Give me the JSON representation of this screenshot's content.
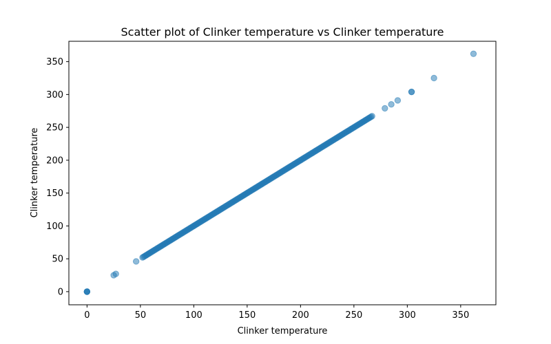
{
  "chart_data": {
    "type": "scatter",
    "title": "Scatter plot of Clinker temperature vs Clinker temperature",
    "xlabel": "Clinker temperature",
    "ylabel": "Clinker temperature",
    "xlim": [
      -17,
      383
    ],
    "ylim": [
      -20,
      381
    ],
    "xticks": [
      0,
      50,
      100,
      150,
      200,
      250,
      300,
      350
    ],
    "yticks": [
      0,
      50,
      100,
      150,
      200,
      250,
      300,
      350
    ],
    "grid": false,
    "legend": "none",
    "color": "#1f77b4",
    "opacity": 0.5,
    "points": [
      [
        0,
        0
      ],
      [
        0,
        0
      ],
      [
        0,
        0
      ],
      [
        0,
        0
      ],
      [
        25,
        25
      ],
      [
        27,
        27
      ],
      [
        46,
        46
      ],
      [
        52,
        52
      ],
      [
        53,
        53
      ],
      [
        54,
        54
      ],
      [
        55,
        55
      ],
      [
        56,
        56
      ],
      [
        57,
        57
      ],
      [
        58,
        58
      ],
      [
        59,
        59
      ],
      [
        60,
        60
      ],
      [
        61,
        61
      ],
      [
        62,
        62
      ],
      [
        63,
        63
      ],
      [
        64,
        64
      ],
      [
        65,
        65
      ],
      [
        66,
        66
      ],
      [
        67,
        67
      ],
      [
        68,
        68
      ],
      [
        69,
        69
      ],
      [
        70,
        70
      ],
      [
        71,
        71
      ],
      [
        72,
        72
      ],
      [
        73,
        73
      ],
      [
        74,
        74
      ],
      [
        75,
        75
      ],
      [
        76,
        76
      ],
      [
        77,
        77
      ],
      [
        78,
        78
      ],
      [
        79,
        79
      ],
      [
        80,
        80
      ],
      [
        81,
        81
      ],
      [
        82,
        82
      ],
      [
        83,
        83
      ],
      [
        84,
        84
      ],
      [
        85,
        85
      ],
      [
        86,
        86
      ],
      [
        87,
        87
      ],
      [
        88,
        88
      ],
      [
        89,
        89
      ],
      [
        90,
        90
      ],
      [
        91,
        91
      ],
      [
        92,
        92
      ],
      [
        93,
        93
      ],
      [
        94,
        94
      ],
      [
        95,
        95
      ],
      [
        96,
        96
      ],
      [
        97,
        97
      ],
      [
        98,
        98
      ],
      [
        99,
        99
      ],
      [
        100,
        100
      ],
      [
        101,
        101
      ],
      [
        102,
        102
      ],
      [
        103,
        103
      ],
      [
        104,
        104
      ],
      [
        105,
        105
      ],
      [
        106,
        106
      ],
      [
        107,
        107
      ],
      [
        108,
        108
      ],
      [
        109,
        109
      ],
      [
        110,
        110
      ],
      [
        111,
        111
      ],
      [
        112,
        112
      ],
      [
        113,
        113
      ],
      [
        114,
        114
      ],
      [
        115,
        115
      ],
      [
        116,
        116
      ],
      [
        117,
        117
      ],
      [
        118,
        118
      ],
      [
        119,
        119
      ],
      [
        120,
        120
      ],
      [
        121,
        121
      ],
      [
        122,
        122
      ],
      [
        123,
        123
      ],
      [
        124,
        124
      ],
      [
        125,
        125
      ],
      [
        126,
        126
      ],
      [
        127,
        127
      ],
      [
        128,
        128
      ],
      [
        129,
        129
      ],
      [
        130,
        130
      ],
      [
        131,
        131
      ],
      [
        132,
        132
      ],
      [
        133,
        133
      ],
      [
        134,
        134
      ],
      [
        135,
        135
      ],
      [
        136,
        136
      ],
      [
        137,
        137
      ],
      [
        138,
        138
      ],
      [
        139,
        139
      ],
      [
        140,
        140
      ],
      [
        141,
        141
      ],
      [
        142,
        142
      ],
      [
        143,
        143
      ],
      [
        144,
        144
      ],
      [
        145,
        145
      ],
      [
        146,
        146
      ],
      [
        147,
        147
      ],
      [
        148,
        148
      ],
      [
        149,
        149
      ],
      [
        150,
        150
      ],
      [
        151,
        151
      ],
      [
        152,
        152
      ],
      [
        153,
        153
      ],
      [
        154,
        154
      ],
      [
        155,
        155
      ],
      [
        156,
        156
      ],
      [
        157,
        157
      ],
      [
        158,
        158
      ],
      [
        159,
        159
      ],
      [
        160,
        160
      ],
      [
        161,
        161
      ],
      [
        162,
        162
      ],
      [
        163,
        163
      ],
      [
        164,
        164
      ],
      [
        165,
        165
      ],
      [
        166,
        166
      ],
      [
        167,
        167
      ],
      [
        168,
        168
      ],
      [
        169,
        169
      ],
      [
        170,
        170
      ],
      [
        171,
        171
      ],
      [
        172,
        172
      ],
      [
        173,
        173
      ],
      [
        174,
        174
      ],
      [
        175,
        175
      ],
      [
        176,
        176
      ],
      [
        177,
        177
      ],
      [
        178,
        178
      ],
      [
        179,
        179
      ],
      [
        180,
        180
      ],
      [
        181,
        181
      ],
      [
        182,
        182
      ],
      [
        183,
        183
      ],
      [
        184,
        184
      ],
      [
        185,
        185
      ],
      [
        186,
        186
      ],
      [
        187,
        187
      ],
      [
        188,
        188
      ],
      [
        189,
        189
      ],
      [
        190,
        190
      ],
      [
        191,
        191
      ],
      [
        192,
        192
      ],
      [
        193,
        193
      ],
      [
        194,
        194
      ],
      [
        195,
        195
      ],
      [
        196,
        196
      ],
      [
        197,
        197
      ],
      [
        198,
        198
      ],
      [
        199,
        199
      ],
      [
        200,
        200
      ],
      [
        201,
        201
      ],
      [
        202,
        202
      ],
      [
        203,
        203
      ],
      [
        204,
        204
      ],
      [
        205,
        205
      ],
      [
        206,
        206
      ],
      [
        207,
        207
      ],
      [
        208,
        208
      ],
      [
        209,
        209
      ],
      [
        210,
        210
      ],
      [
        211,
        211
      ],
      [
        212,
        212
      ],
      [
        213,
        213
      ],
      [
        214,
        214
      ],
      [
        215,
        215
      ],
      [
        216,
        216
      ],
      [
        217,
        217
      ],
      [
        218,
        218
      ],
      [
        219,
        219
      ],
      [
        220,
        220
      ],
      [
        221,
        221
      ],
      [
        222,
        222
      ],
      [
        223,
        223
      ],
      [
        224,
        224
      ],
      [
        225,
        225
      ],
      [
        226,
        226
      ],
      [
        227,
        227
      ],
      [
        228,
        228
      ],
      [
        229,
        229
      ],
      [
        230,
        230
      ],
      [
        231,
        231
      ],
      [
        232,
        232
      ],
      [
        233,
        233
      ],
      [
        234,
        234
      ],
      [
        235,
        235
      ],
      [
        236,
        236
      ],
      [
        237,
        237
      ],
      [
        238,
        238
      ],
      [
        239,
        239
      ],
      [
        240,
        240
      ],
      [
        241,
        241
      ],
      [
        242,
        242
      ],
      [
        243,
        243
      ],
      [
        244,
        244
      ],
      [
        245,
        245
      ],
      [
        246,
        246
      ],
      [
        247,
        247
      ],
      [
        248,
        248
      ],
      [
        249,
        249
      ],
      [
        250,
        250
      ],
      [
        251,
        251
      ],
      [
        252,
        252
      ],
      [
        253,
        253
      ],
      [
        254,
        254
      ],
      [
        255,
        255
      ],
      [
        256,
        256
      ],
      [
        257,
        257
      ],
      [
        258,
        258
      ],
      [
        259,
        259
      ],
      [
        260,
        260
      ],
      [
        261,
        261
      ],
      [
        262,
        262
      ],
      [
        263,
        263
      ],
      [
        264,
        264
      ],
      [
        265,
        265
      ],
      [
        266,
        266
      ],
      [
        267,
        267
      ],
      [
        279,
        279
      ],
      [
        285,
        285
      ],
      [
        291,
        291
      ],
      [
        304,
        304
      ],
      [
        304,
        304
      ],
      [
        325,
        325
      ],
      [
        362,
        362
      ]
    ]
  }
}
